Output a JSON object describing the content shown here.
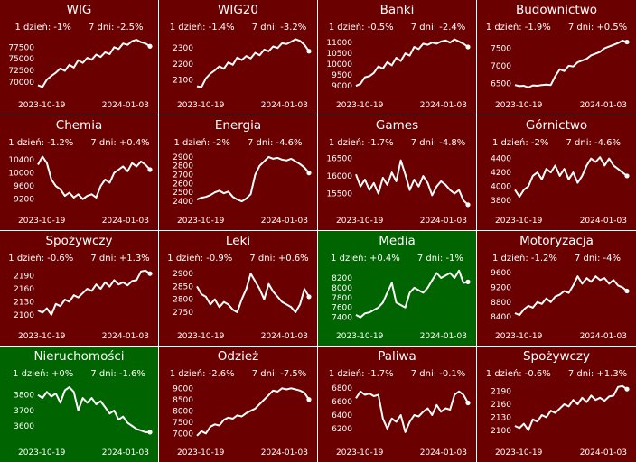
{
  "colors": {
    "down": "#6b0000",
    "up": "#006400",
    "border": "#ffffff",
    "line": "#ffffff"
  },
  "chart_data": [
    {
      "type": "line",
      "title": "WIG",
      "day": "1 dzień: -1%",
      "week": "7 dni: -2.5%",
      "x_start": "2023-10-19",
      "x_end": "2024-01-03",
      "yticks": [
        70000,
        72500,
        75000,
        77500
      ],
      "ylim": [
        68200,
        79900
      ],
      "trend": "down",
      "values": [
        69300,
        68900,
        70500,
        71300,
        72000,
        72900,
        72400,
        73700,
        73100,
        74700,
        74100,
        75200,
        74800,
        75900,
        75400,
        76400,
        76000,
        77500,
        77100,
        78300,
        78000,
        78800,
        79100,
        78600,
        78300,
        77700
      ]
    },
    {
      "type": "line",
      "title": "WIG20",
      "day": "1 dzień: -1.4%",
      "week": "7 dni: -3.2%",
      "x_start": "2023-10-19",
      "x_end": "2024-01-03",
      "yticks": [
        2100,
        2200,
        2300
      ],
      "ylim": [
        2035,
        2375
      ],
      "trend": "down",
      "values": [
        2060,
        2055,
        2110,
        2140,
        2160,
        2185,
        2170,
        2210,
        2195,
        2240,
        2225,
        2250,
        2235,
        2270,
        2255,
        2290,
        2280,
        2310,
        2300,
        2330,
        2325,
        2340,
        2355,
        2345,
        2320,
        2280
      ]
    },
    {
      "type": "line",
      "title": "Banki",
      "day": "1 dzień: -0.5%",
      "week": "7 dni: -2.4%",
      "x_start": "2023-10-19",
      "x_end": "2024-01-03",
      "yticks": [
        9000,
        9500,
        10000,
        10500,
        11000
      ],
      "ylim": [
        8800,
        11300
      ],
      "trend": "down",
      "values": [
        9000,
        9100,
        9400,
        9450,
        9600,
        9900,
        9800,
        10100,
        9950,
        10300,
        10150,
        10500,
        10400,
        10800,
        10700,
        10950,
        10900,
        11000,
        10950,
        11050,
        11100,
        11000,
        11150,
        11050,
        10950,
        10800
      ]
    },
    {
      "type": "line",
      "title": "Budownictwo",
      "day": "1 dzień: -1.9%",
      "week": "7 dni: +0.5%",
      "x_start": "2023-10-19",
      "x_end": "2024-01-03",
      "yticks": [
        6500,
        7000,
        7500
      ],
      "ylim": [
        6300,
        7850
      ],
      "trend": "down",
      "values": [
        6450,
        6420,
        6430,
        6380,
        6440,
        6430,
        6450,
        6460,
        6450,
        6700,
        6900,
        6850,
        7000,
        6980,
        7100,
        7150,
        7200,
        7300,
        7350,
        7400,
        7500,
        7550,
        7600,
        7650,
        7720,
        7680
      ]
    },
    {
      "type": "line",
      "title": "Chemia",
      "day": "1 dzień: -1.2%",
      "week": "7 dni: +0.4%",
      "x_start": "2023-10-19",
      "x_end": "2024-01-03",
      "yticks": [
        9200,
        9600,
        10000,
        10400
      ],
      "ylim": [
        9000,
        10650
      ],
      "trend": "down",
      "values": [
        10250,
        10500,
        10300,
        9800,
        9600,
        9500,
        9300,
        9400,
        9250,
        9350,
        9200,
        9300,
        9350,
        9250,
        9600,
        9800,
        9700,
        10000,
        10100,
        10200,
        10050,
        10300,
        10200,
        10350,
        10250,
        10100
      ]
    },
    {
      "type": "line",
      "title": "Energia",
      "day": "1 dzień: -2%",
      "week": "7 dni: -4.6%",
      "x_start": "2023-10-19",
      "x_end": "2024-01-03",
      "yticks": [
        2400,
        2500,
        2600,
        2700,
        2800,
        2900
      ],
      "ylim": [
        2350,
        2960
      ],
      "trend": "down",
      "values": [
        2420,
        2440,
        2450,
        2470,
        2500,
        2520,
        2490,
        2510,
        2450,
        2420,
        2400,
        2430,
        2480,
        2700,
        2800,
        2850,
        2900,
        2880,
        2890,
        2870,
        2860,
        2880,
        2850,
        2820,
        2780,
        2720
      ]
    },
    {
      "type": "line",
      "title": "Games",
      "day": "1 dzień: -1.7%",
      "week": "7 dni: -4.8%",
      "x_start": "2023-10-19",
      "x_end": "2024-01-03",
      "yticks": [
        15500,
        16000,
        16500
      ],
      "ylim": [
        15150,
        16700
      ],
      "trend": "down",
      "values": [
        16050,
        15700,
        15900,
        15600,
        15800,
        15500,
        15950,
        15750,
        16100,
        15850,
        16450,
        16050,
        15600,
        15900,
        15700,
        16000,
        15800,
        15450,
        15700,
        15850,
        15750,
        15600,
        15500,
        15600,
        15300,
        15180
      ]
    },
    {
      "type": "line",
      "title": "Górnictwo",
      "day": "1 dzień: -2%",
      "week": "7 dni: -4.6%",
      "x_start": "2023-10-19",
      "x_end": "2024-01-03",
      "yticks": [
        3800,
        4000,
        4200,
        4400
      ],
      "ylim": [
        3720,
        4500
      ],
      "trend": "down",
      "values": [
        3950,
        3850,
        3950,
        4000,
        4150,
        4200,
        4100,
        4250,
        4200,
        4300,
        4150,
        4250,
        4100,
        4200,
        4050,
        4150,
        4300,
        4400,
        4350,
        4420,
        4300,
        4400,
        4300,
        4250,
        4200,
        4150
      ]
    },
    {
      "type": "line",
      "title": "Spożywczy",
      "day": "1 dzień: -0.6%",
      "week": "7 dni: +1.3%",
      "x_start": "2023-10-19",
      "x_end": "2024-01-03",
      "yticks": [
        2100,
        2130,
        2160,
        2190
      ],
      "ylim": [
        2085,
        2210
      ],
      "trend": "down",
      "values": [
        2110,
        2105,
        2115,
        2100,
        2125,
        2120,
        2135,
        2130,
        2145,
        2140,
        2150,
        2160,
        2155,
        2170,
        2160,
        2175,
        2165,
        2180,
        2170,
        2175,
        2168,
        2178,
        2180,
        2200,
        2202,
        2195
      ]
    },
    {
      "type": "line",
      "title": "Leki",
      "day": "1 dzień: -0.9%",
      "week": "7 dni: +0.6%",
      "x_start": "2023-10-19",
      "x_end": "2024-01-03",
      "yticks": [
        2750,
        2800,
        2850,
        2900
      ],
      "ylim": [
        2715,
        2925
      ],
      "trend": "down",
      "values": [
        2850,
        2820,
        2810,
        2780,
        2800,
        2770,
        2790,
        2780,
        2760,
        2750,
        2800,
        2840,
        2900,
        2870,
        2840,
        2800,
        2860,
        2830,
        2810,
        2790,
        2780,
        2770,
        2750,
        2780,
        2840,
        2810
      ]
    },
    {
      "type": "line",
      "title": "Media",
      "day": "1 dzień: +0.4%",
      "week": "7 dni: -1%",
      "x_start": "2023-10-19",
      "x_end": "2024-01-03",
      "yticks": [
        7400,
        7600,
        7800,
        8000,
        8200
      ],
      "ylim": [
        7320,
        8420
      ],
      "trend": "up",
      "values": [
        7450,
        7400,
        7480,
        7500,
        7550,
        7600,
        7700,
        7900,
        8100,
        7700,
        7650,
        7600,
        7900,
        8000,
        7950,
        7900,
        8000,
        8150,
        8300,
        8200,
        8250,
        8300,
        8200,
        8350,
        8100,
        8120
      ]
    },
    {
      "type": "line",
      "title": "Motoryzacja",
      "day": "1 dzień: -1.2%",
      "week": "7 dni: -4%",
      "x_start": "2023-10-19",
      "x_end": "2024-01-03",
      "yticks": [
        8400,
        8800,
        9200,
        9600
      ],
      "ylim": [
        8280,
        9750
      ],
      "trend": "down",
      "values": [
        8500,
        8450,
        8600,
        8700,
        8650,
        8800,
        8750,
        8900,
        8800,
        8950,
        9000,
        9100,
        9050,
        9250,
        9500,
        9300,
        9450,
        9350,
        9500,
        9400,
        9450,
        9300,
        9400,
        9250,
        9200,
        9100
      ]
    },
    {
      "type": "line",
      "title": "Nieruchomości",
      "day": "1 dzień: +0%",
      "week": "7 dni: -1.6%",
      "x_start": "2023-10-19",
      "x_end": "2024-01-03",
      "yticks": [
        3600,
        3700,
        3800
      ],
      "ylim": [
        3530,
        3880
      ],
      "trend": "up",
      "values": [
        3800,
        3780,
        3820,
        3790,
        3810,
        3750,
        3830,
        3850,
        3820,
        3700,
        3780,
        3750,
        3780,
        3740,
        3760,
        3720,
        3680,
        3700,
        3640,
        3660,
        3620,
        3600,
        3580,
        3570,
        3560,
        3560
      ]
    },
    {
      "type": "line",
      "title": "Odzież",
      "day": "1 dzień: -2.6%",
      "week": "7 dni: -7.5%",
      "x_start": "2023-10-19",
      "x_end": "2024-01-03",
      "yticks": [
        7000,
        7500,
        8000,
        8500,
        9000
      ],
      "ylim": [
        6850,
        9250
      ],
      "trend": "down",
      "values": [
        6900,
        7100,
        7000,
        7300,
        7400,
        7350,
        7600,
        7700,
        7650,
        7800,
        7750,
        7900,
        8000,
        8100,
        8300,
        8500,
        8700,
        8900,
        8850,
        9000,
        8950,
        9000,
        8950,
        8900,
        8800,
        8500
      ]
    },
    {
      "type": "line",
      "title": "Paliwa",
      "day": "1 dzień: -1.7%",
      "week": "7 dni: -0.1%",
      "x_start": "2023-10-19",
      "x_end": "2024-01-03",
      "yticks": [
        6200,
        6400,
        6600,
        6800
      ],
      "ylim": [
        6080,
        6880
      ],
      "trend": "down",
      "values": [
        6650,
        6750,
        6700,
        6720,
        6680,
        6700,
        6350,
        6200,
        6350,
        6300,
        6400,
        6150,
        6300,
        6400,
        6380,
        6450,
        6500,
        6400,
        6550,
        6450,
        6500,
        6480,
        6700,
        6750,
        6700,
        6580
      ]
    },
    {
      "type": "line",
      "title": "Spożywczy",
      "day": "1 dzień: -0.6%",
      "week": "7 dni: +1.3%",
      "x_start": "2023-10-19",
      "x_end": "2024-01-03",
      "yticks": [
        2100,
        2130,
        2160,
        2190
      ],
      "ylim": [
        2085,
        2210
      ],
      "trend": "down",
      "values": [
        2110,
        2105,
        2115,
        2100,
        2125,
        2120,
        2135,
        2130,
        2145,
        2140,
        2150,
        2160,
        2155,
        2170,
        2160,
        2175,
        2165,
        2180,
        2170,
        2175,
        2168,
        2178,
        2180,
        2200,
        2202,
        2195
      ]
    }
  ]
}
